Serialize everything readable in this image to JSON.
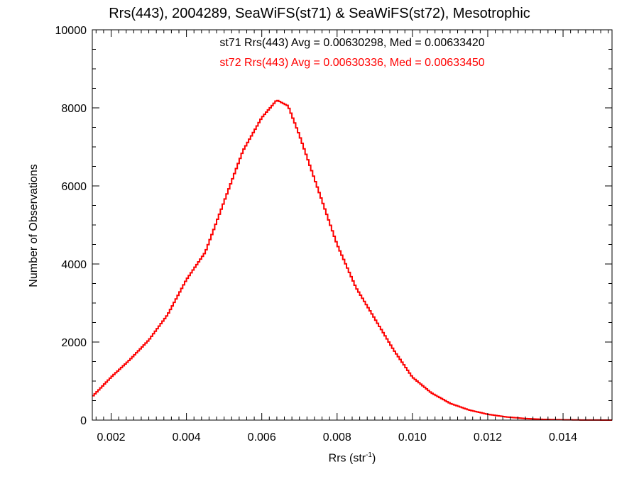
{
  "chart_data": {
    "type": "histogram",
    "title": "Rrs(443), 2004289, SeaWiFS(st71) & SeaWiFS(st72), Mesotrophic",
    "xlabel_main": "Rrs (str",
    "xlabel_sup": "-1",
    "xlabel_close": ")",
    "ylabel": "Number of Observations",
    "xlim": [
      0.0015,
      0.0153
    ],
    "ylim": [
      0,
      10000
    ],
    "x_ticks": [
      0.002,
      0.004,
      0.006,
      0.008,
      0.01,
      0.012,
      0.014
    ],
    "x_tick_labels": [
      "0.002",
      "0.004",
      "0.006",
      "0.008",
      "0.010",
      "0.012",
      "0.014"
    ],
    "y_ticks": [
      0,
      2000,
      4000,
      6000,
      8000,
      10000
    ],
    "y_tick_labels": [
      "0",
      "2000",
      "4000",
      "6000",
      "8000",
      "10000"
    ],
    "annotations": [
      {
        "text": "st71 Rrs(443) Avg = 0.00630298, Med = 0.00633420",
        "color": "#000000"
      },
      {
        "text": "st72 Rrs(443) Avg = 0.00630336, Med = 0.00633450",
        "color": "#ff0000"
      }
    ],
    "series": [
      {
        "name": "st71",
        "color": "#000000",
        "profile": [
          [
            0.0015,
            600
          ],
          [
            0.002,
            1100
          ],
          [
            0.0025,
            1550
          ],
          [
            0.003,
            2050
          ],
          [
            0.0035,
            2700
          ],
          [
            0.004,
            3600
          ],
          [
            0.0045,
            4300
          ],
          [
            0.005,
            5600
          ],
          [
            0.0055,
            6900
          ],
          [
            0.006,
            7750
          ],
          [
            0.0064,
            8200
          ],
          [
            0.0067,
            8050
          ],
          [
            0.007,
            7300
          ],
          [
            0.0075,
            5900
          ],
          [
            0.008,
            4500
          ],
          [
            0.0085,
            3400
          ],
          [
            0.009,
            2600
          ],
          [
            0.0095,
            1800
          ],
          [
            0.01,
            1100
          ],
          [
            0.0105,
            700
          ],
          [
            0.011,
            430
          ],
          [
            0.0115,
            260
          ],
          [
            0.012,
            150
          ],
          [
            0.0125,
            80
          ],
          [
            0.013,
            40
          ],
          [
            0.0135,
            18
          ],
          [
            0.014,
            8
          ],
          [
            0.0145,
            3
          ],
          [
            0.0153,
            0
          ]
        ]
      },
      {
        "name": "st72",
        "color": "#ff0000",
        "profile": [
          [
            0.0015,
            600
          ],
          [
            0.002,
            1100
          ],
          [
            0.0025,
            1550
          ],
          [
            0.003,
            2050
          ],
          [
            0.0035,
            2700
          ],
          [
            0.004,
            3600
          ],
          [
            0.0045,
            4300
          ],
          [
            0.005,
            5600
          ],
          [
            0.0055,
            6900
          ],
          [
            0.006,
            7750
          ],
          [
            0.0064,
            8200
          ],
          [
            0.0067,
            8050
          ],
          [
            0.007,
            7300
          ],
          [
            0.0075,
            5900
          ],
          [
            0.008,
            4500
          ],
          [
            0.0085,
            3400
          ],
          [
            0.009,
            2600
          ],
          [
            0.0095,
            1800
          ],
          [
            0.01,
            1100
          ],
          [
            0.0105,
            700
          ],
          [
            0.011,
            430
          ],
          [
            0.0115,
            260
          ],
          [
            0.012,
            150
          ],
          [
            0.0125,
            80
          ],
          [
            0.013,
            40
          ],
          [
            0.0135,
            18
          ],
          [
            0.014,
            8
          ],
          [
            0.0145,
            3
          ],
          [
            0.0153,
            0
          ]
        ]
      }
    ]
  }
}
